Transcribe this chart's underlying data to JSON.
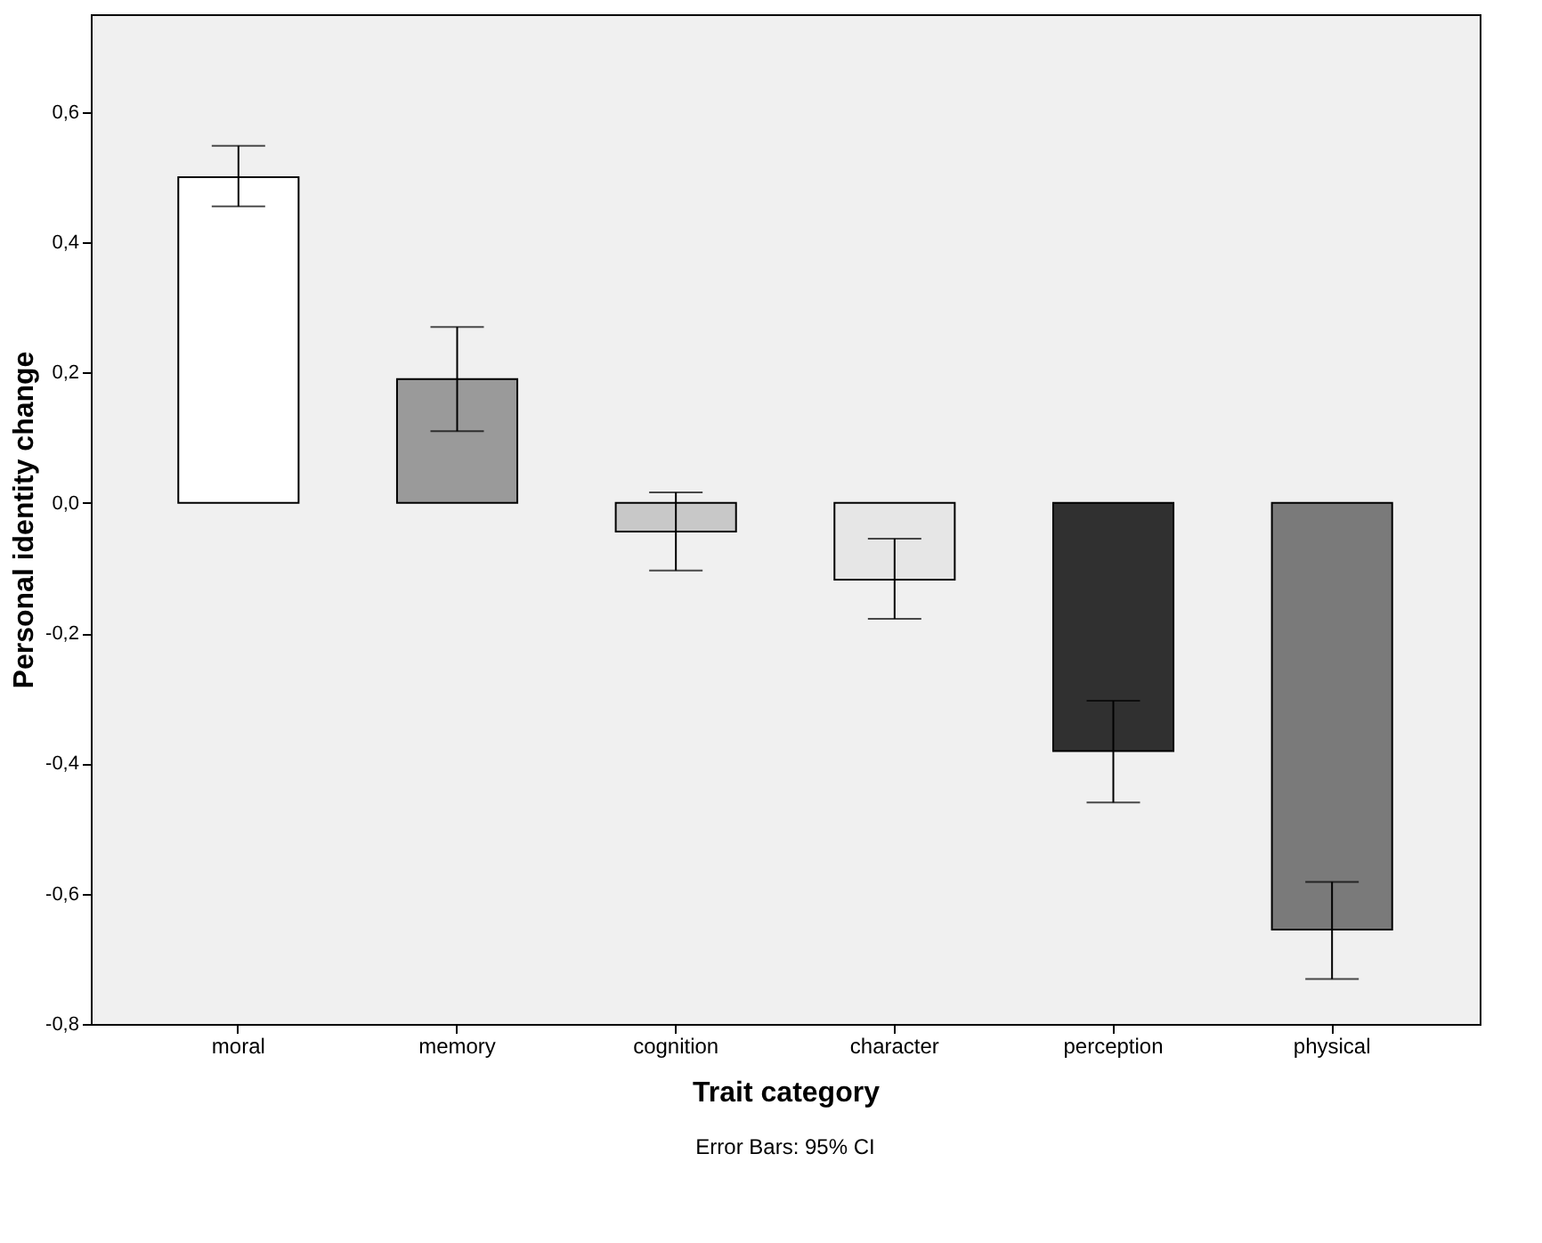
{
  "chart_data": {
    "type": "bar",
    "xlabel": "Trait category",
    "ylabel": "Personal identity change",
    "categories": [
      "moral",
      "memory",
      "cognition",
      "character",
      "perception",
      "physical"
    ],
    "values": [
      0.5,
      0.19,
      -0.044,
      -0.118,
      -0.381,
      -0.655
    ],
    "errors": [
      [
        0.455,
        0.548
      ],
      [
        0.11,
        0.27
      ],
      [
        -0.104,
        0.016
      ],
      [
        -0.178,
        -0.055
      ],
      [
        -0.46,
        -0.304
      ],
      [
        -0.731,
        -0.582
      ]
    ],
    "colors": [
      "#ffffff",
      "#9a9a9a",
      "#c8c8c8",
      "#e6e6e6",
      "#303030",
      "#7a7a7a"
    ],
    "ylim": [
      -0.8,
      0.75
    ],
    "yticks": [
      {
        "value": -0.8,
        "label": "-0,8"
      },
      {
        "value": -0.6,
        "label": "-0,6"
      },
      {
        "value": -0.4,
        "label": "-0,4"
      },
      {
        "value": -0.2,
        "label": "-0,2"
      },
      {
        "value": 0,
        "label": "0,0"
      },
      {
        "value": 0.2,
        "label": "0,2"
      },
      {
        "value": 0.4,
        "label": "0,4"
      },
      {
        "value": 0.6,
        "label": "0,6"
      }
    ],
    "grid": false,
    "annotations": [
      "Error Bars: 95% CI"
    ]
  }
}
